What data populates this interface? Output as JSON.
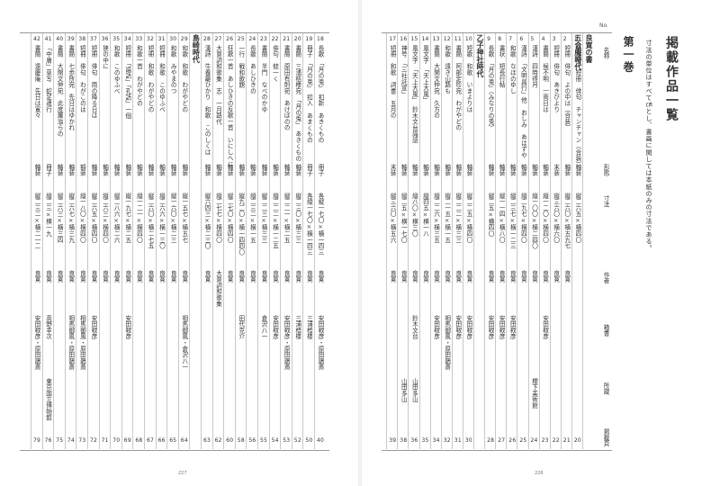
{
  "page": {
    "title": "掲載作品一覧",
    "note": "寸法の単位はすべて㎝とし、書画に関しては本紙のみの寸法である。",
    "volume": "第一巻",
    "folio_left": "227",
    "folio_right": "226"
  },
  "headers": {
    "no": "No.",
    "name": "名称",
    "form": "形態",
    "size": "寸法",
    "author": "作者",
    "box": "箱書",
    "owner": "所蔵",
    "page": "掲載頁"
  },
  "right_rows": [
    {
      "no": "",
      "name": "",
      "form": "",
      "size": "",
      "author": "",
      "box": "",
      "owner": "",
      "page": "",
      "sec": "良寛の書"
    },
    {
      "no": "1",
      "name": "横以前　短冊　俳句　チャンチャン（合装）",
      "form": "軸装",
      "size": "縦二六五×横四〇",
      "author": "",
      "box": "",
      "owner": "",
      "page": "20",
      "sec": "五合庵時代"
    },
    {
      "no": "2",
      "name": "短冊　俳句　よの中は（合装）",
      "form": "軸装",
      "size": "縦二六〇×横五九七",
      "author": "良寛",
      "box": "",
      "owner": "",
      "page": "21"
    },
    {
      "no": "3",
      "name": "短冊　俳句　あきびより",
      "form": "末装",
      "size": "縦三六〇×横六〇",
      "author": "良寛",
      "box": "",
      "owner": "",
      "page": "22"
    },
    {
      "no": "4",
      "name": "書簡　候不明　一両日は",
      "form": "軸装",
      "size": "縦一二〇×横四〇",
      "author": "良寛",
      "box": "安田靫彦",
      "owner": "",
      "page": "23"
    },
    {
      "no": "5",
      "name": "漢詩　四時得月",
      "form": "軸装",
      "size": "縦一〇〇×横二四〇",
      "author": "良寛",
      "box": "",
      "owner": "櫻下美術館",
      "page": "24"
    },
    {
      "no": "6",
      "name": "漢詩　「文明具行」他　おしみ　あはずや",
      "form": "軸装",
      "size": "縦二九七×横四〇",
      "author": "良寛",
      "box": "",
      "owner": "",
      "page": "25"
    },
    {
      "no": "7",
      "name": "和歌　なほのゆし",
      "form": "軸装",
      "size": "縦二三七×横一二三",
      "author": "良寛",
      "box": "安田靫彦",
      "owner": "",
      "page": "26"
    },
    {
      "no": "8",
      "name": "書状　短長行帖",
      "form": "軸装",
      "size": "縦一一四×横八〇",
      "author": "良寛",
      "box": "安田靫彦",
      "owner": "",
      "page": "27"
    },
    {
      "no": "9",
      "name": "長歌　「月の兎」（みなりの兎）",
      "form": "軸装",
      "size": "縦二五×横四〇",
      "author": "良寛",
      "box": "安田靫彦",
      "owner": "",
      "page": "28"
    },
    {
      "no": "",
      "name": "",
      "form": "",
      "size": "",
      "author": "",
      "box": "",
      "owner": "",
      "page": "",
      "sec": "乙子神社時代"
    },
    {
      "no": "10",
      "name": "短歌　和歌　いまよりは",
      "form": "軸装",
      "size": "縦二二五×横四〇",
      "author": "良寛",
      "box": "安田靫彦",
      "owner": "",
      "page": "30"
    },
    {
      "no": "11",
      "name": "書簡　阿部定珍宛　わがやどの",
      "form": "軸装",
      "size": "縦二二二×横三三",
      "author": "良寛",
      "box": "安田靫彦",
      "owner": "",
      "page": "31"
    },
    {
      "no": "12",
      "name": "和歌　遠き山路も",
      "form": "軸装",
      "size": "縦二一五×横一五",
      "author": "良寛",
      "box": "相馬御風・原田鵲斎",
      "owner": "",
      "page": "32"
    },
    {
      "no": "13",
      "name": "書簡　大関文仲宛　久方の",
      "form": "軸装",
      "size": "縦二二六×横三五",
      "author": "良寛",
      "box": "安田靫彦",
      "owner": "",
      "page": "34"
    },
    {
      "no": "14",
      "name": "風文字　「天上大風」",
      "form": "軸装",
      "size": "縦四五×横一八",
      "author": "良寛",
      "box": "",
      "owner": "",
      "page": "35"
    },
    {
      "no": "15",
      "name": "風文字　「天上大風」　鈴木文台識語",
      "form": "軸装",
      "size": "縦八〇×横三〇",
      "author": "良寛",
      "box": "鈴木文台",
      "owner": "山田多山",
      "page": "36"
    },
    {
      "no": "16",
      "name": "神号　「三社託宣」",
      "form": "軸装",
      "size": "縦二五×横一七〇",
      "author": "良寛",
      "box": "",
      "owner": "山田多山",
      "page": "38"
    },
    {
      "no": "17",
      "name": "短冊　和歌　詞書　五月の",
      "form": "末装",
      "size": "縦三六〇×横五六",
      "author": "良寛",
      "box": "",
      "owner": "",
      "page": "39"
    }
  ],
  "left_rows": [
    {
      "no": "18",
      "name": "長歌　「月の兎」　扣新　あきくもの",
      "form": "冊子",
      "size": "各縦一七〇×横一四三",
      "author": "良寛",
      "box": "安田靫彦・原田鵲斎",
      "owner": "",
      "page": "40"
    },
    {
      "no": "19",
      "name": "冊子　「月の兎」　扣入　あまくもの",
      "form": "冊子",
      "size": "各縦一七〇×横一四三",
      "author": "良寛",
      "box": "三浦梧楼",
      "owner": "",
      "page": "50"
    },
    {
      "no": "20",
      "name": "書簡　三浦梧楼宛　「月の兎」　あきくもの",
      "form": "軸装",
      "size": "縦二三〇×横三三",
      "author": "良寛",
      "box": "三浦梧楼",
      "owner": "",
      "page": "52"
    },
    {
      "no": "21",
      "name": "書簡　原田有則宛　あけぼのの",
      "form": "軸装",
      "size": "縦二二一×横二五",
      "author": "良寛",
      "box": "安田靫彦・原田鵲斎",
      "owner": "",
      "page": "53"
    },
    {
      "no": "22",
      "name": "俳句　蛙一く",
      "form": "軸装",
      "size": "縦二二二×横一二五",
      "author": "良寛",
      "box": "安田靫彦",
      "owner": "",
      "page": "54"
    },
    {
      "no": "23",
      "name": "書簡　半門　なべのかゆ",
      "form": "軸装",
      "size": "縦二二三×横三三",
      "author": "良寛",
      "box": "倉沢八一",
      "owner": "",
      "page": "55"
    },
    {
      "no": "24",
      "name": "長歌　あしひきの",
      "form": "軸装",
      "size": "縦二三二×横一五",
      "author": "良寛",
      "box": "",
      "owner": "",
      "page": "56"
    },
    {
      "no": "25",
      "name": "一行　戦和歌題",
      "form": "軸装",
      "size": "縦九二〇×横一四四〇",
      "author": "良寛",
      "box": "田代克介",
      "owner": "",
      "page": "58"
    },
    {
      "no": "26",
      "name": "狂歌一首　あしひきの反歌一首　いにしへに",
      "form": "軸装",
      "size": "縦二七〇×横四〇",
      "author": "良寛",
      "box": "",
      "owner": "",
      "page": "60"
    },
    {
      "no": "27",
      "name": "大意詞和歌集　志　一月路代",
      "form": "軸装",
      "size": "縦二七七×横四〇",
      "author": "大意詞和歌集",
      "box": "",
      "owner": "",
      "page": "62"
    },
    {
      "no": "28",
      "name": "漢詩　牛養離ひかり　和歌　このしくは",
      "form": "軸装",
      "size": "縦六四三×横二三〇",
      "author": "良寛",
      "box": "",
      "owner": "",
      "page": "63"
    },
    {
      "no": "",
      "name": "",
      "form": "",
      "size": "",
      "author": "",
      "box": "",
      "owner": "",
      "page": "",
      "sec": "島崎時代"
    },
    {
      "no": "29",
      "name": "和歌　和歌　わがやどの",
      "form": "軸装",
      "size": "縦一五七×横五七",
      "author": "良寛",
      "box": "相馬御風・倉沢八一",
      "owner": "",
      "page": "64"
    },
    {
      "no": "30",
      "name": "和歌　みやまのつ",
      "form": "軸装",
      "size": "縦一六〇×横二三",
      "author": "良寛",
      "box": "",
      "owner": "",
      "page": "65"
    },
    {
      "no": "31",
      "name": "短冊　和歌　このゆふべ",
      "form": "軸装",
      "size": "縦二六六×横一三〇",
      "author": "良寛",
      "box": "",
      "owner": "",
      "page": "66"
    },
    {
      "no": "32",
      "name": "短冊　和歌　わがやどの",
      "form": "軸装",
      "size": "縦二六〇×横二七五",
      "author": "良寛",
      "box": "",
      "owner": "",
      "page": "67"
    },
    {
      "no": "33",
      "name": "和歌一首　わがやどの",
      "form": "軸装",
      "size": "縦一二一×横四〇",
      "author": "良寛",
      "box": "",
      "owner": "",
      "page": "68"
    },
    {
      "no": "34",
      "name": "短冊　「論語」「孔語」一個",
      "form": "軸装",
      "size": "縦一九七×横二五",
      "author": "良寛",
      "box": "安田靫彦",
      "owner": "",
      "page": "69"
    },
    {
      "no": "35",
      "name": "和歌　このゆふべ",
      "form": "軸装",
      "size": "縦二八六×横二六",
      "author": "良寛",
      "box": "",
      "owner": "",
      "page": "70"
    },
    {
      "no": "36",
      "name": "狭の中に",
      "form": "軸装",
      "size": "縦二六三×横四〇",
      "author": "良寛",
      "box": "",
      "owner": "",
      "page": "71"
    },
    {
      "no": "37",
      "name": "短冊　俳句　雨の降る日は",
      "form": "軸装",
      "size": "縦二六五×横四〇",
      "author": "良寛",
      "box": "安田靫彦",
      "owner": "",
      "page": "72"
    },
    {
      "no": "38",
      "name": "短冊　俳句　わがこのは",
      "form": "額装",
      "size": "縦一八〇×横四〇",
      "author": "良寛",
      "box": "相馬御風・原田鵲斎",
      "owner": "",
      "page": "73"
    },
    {
      "no": "39",
      "name": "書簡　七歩所宛　先日はゆかれ",
      "form": "軸装",
      "size": "縦二六七×横三九",
      "author": "良寛",
      "box": "相馬御風・原田鵲斎",
      "owner": "",
      "page": "74"
    },
    {
      "no": "40",
      "name": "書簡　大関文仲宛　此度羅溢らの",
      "form": "軸装",
      "size": "縦二六三×横三四",
      "author": "良寛",
      "box": "",
      "owner": "",
      "page": "75"
    },
    {
      "no": "41",
      "name": "「中庸」草写　蛇足遣行",
      "form": "冊子",
      "size": "縦二三×横一九",
      "author": "良寛",
      "box": "高野幸次",
      "owner": "東京国立博物館",
      "page": "76"
    },
    {
      "no": "42",
      "name": "書簡　遠慶庵　先日は寛々",
      "form": "軸装",
      "size": "縦二三二×横二一二",
      "author": "良寛",
      "box": "安田靫彦・原田鵲斎",
      "owner": "",
      "page": "79"
    }
  ]
}
